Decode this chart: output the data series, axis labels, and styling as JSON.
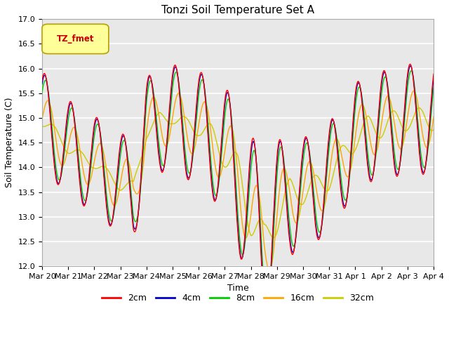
{
  "title": "Tonzi Soil Temperature Set A",
  "xlabel": "Time",
  "ylabel": "Soil Temperature (C)",
  "ylim": [
    12.0,
    17.0
  ],
  "yticks": [
    12.0,
    12.5,
    13.0,
    13.5,
    14.0,
    14.5,
    15.0,
    15.5,
    16.0,
    16.5,
    17.0
  ],
  "xtick_labels": [
    "Mar 20",
    "Mar 21",
    "Mar 22",
    "Mar 23",
    "Mar 24",
    "Mar 25",
    "Mar 26",
    "Mar 27",
    "Mar 28",
    "Mar 29",
    "Mar 30",
    "Mar 31",
    "Apr 1",
    "Apr 2",
    "Apr 3",
    "Apr 4"
  ],
  "colors": {
    "2cm": "#ff0000",
    "4cm": "#0000cc",
    "8cm": "#00cc00",
    "16cm": "#ffa500",
    "32cm": "#cccc00"
  },
  "legend_label": "TZ_fmet",
  "legend_box_color": "#ffff99",
  "legend_text_color": "#cc0000",
  "background_color": "#e8e8e8",
  "grid_color": "#ffffff"
}
